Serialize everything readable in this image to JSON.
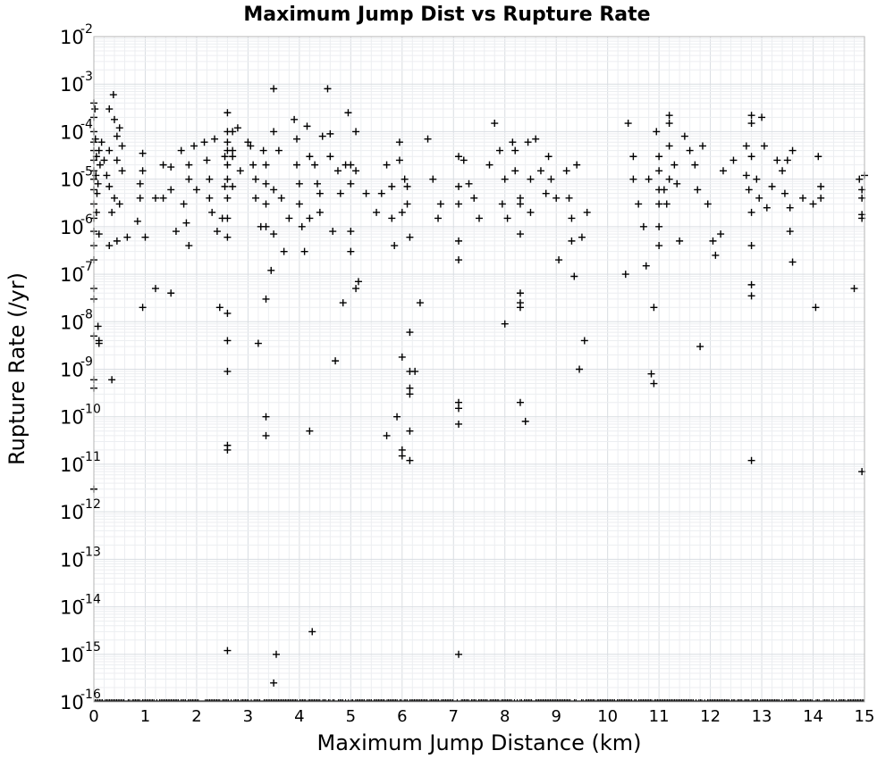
{
  "chart_data": {
    "type": "scatter",
    "title": "Maximum Jump Dist vs Rupture Rate",
    "xlabel": "Maximum Jump Distance (km)",
    "ylabel": "Rupture Rate (/yr)",
    "xlim": [
      0,
      15
    ],
    "ylim": [
      1e-16,
      0.01
    ],
    "y_scale": "log",
    "x_ticks": [
      "0",
      "1",
      "2",
      "3",
      "4",
      "5",
      "6",
      "7",
      "8",
      "9",
      "10",
      "11",
      "12",
      "13",
      "14",
      "15"
    ],
    "y_ticks": [
      {
        "base": "10",
        "exp": "-2"
      },
      {
        "base": "10",
        "exp": "-3"
      },
      {
        "base": "10",
        "exp": "-4"
      },
      {
        "base": "10",
        "exp": "-5"
      },
      {
        "base": "10",
        "exp": "-6"
      },
      {
        "base": "10",
        "exp": "-7"
      },
      {
        "base": "10",
        "exp": "-8"
      },
      {
        "base": "10",
        "exp": "-9"
      },
      {
        "base": "10",
        "exp": "-10"
      },
      {
        "base": "10",
        "exp": "-11"
      },
      {
        "base": "10",
        "exp": "-12"
      },
      {
        "base": "10",
        "exp": "-13"
      },
      {
        "base": "10",
        "exp": "-14"
      },
      {
        "base": "10",
        "exp": "-15"
      },
      {
        "base": "10",
        "exp": "-16"
      }
    ],
    "grid": true,
    "marker": "plus",
    "marker_color": "#000000",
    "points": [
      [
        0.0,
        0.0004
      ],
      [
        0.0,
        0.0002
      ],
      [
        0.0,
        0.0001
      ],
      [
        0.0,
        6e-05
      ],
      [
        0.0,
        4e-05
      ],
      [
        0.0,
        2.5e-05
      ],
      [
        0.0,
        1.5e-05
      ],
      [
        0.0,
        1e-05
      ],
      [
        0.0,
        6e-06
      ],
      [
        0.0,
        3e-06
      ],
      [
        0.0,
        1.5e-06
      ],
      [
        0.0,
        8e-07
      ],
      [
        0.0,
        4e-07
      ],
      [
        0.0,
        2e-07
      ],
      [
        0.0,
        5e-08
      ],
      [
        0.0,
        3e-08
      ],
      [
        0.0,
        5e-09
      ],
      [
        0.0,
        6e-10
      ],
      [
        0.0,
        4e-10
      ],
      [
        0.0,
        3e-12
      ],
      [
        0.02,
        0.0003
      ],
      [
        0.03,
        7e-05
      ],
      [
        0.05,
        3e-05
      ],
      [
        0.04,
        1.2e-05
      ],
      [
        0.06,
        5e-06
      ],
      [
        0.05,
        2e-06
      ],
      [
        0.08,
        8e-06
      ],
      [
        0.1,
        4e-05
      ],
      [
        0.12,
        2e-05
      ],
      [
        0.1,
        7e-07
      ],
      [
        0.1,
        4e-09
      ],
      [
        0.1,
        3.5e-09
      ],
      [
        0.08,
        8e-09
      ],
      [
        0.15,
        6e-05
      ],
      [
        0.2,
        2.5e-05
      ],
      [
        0.25,
        1.2e-05
      ],
      [
        0.3,
        0.0003
      ],
      [
        0.3,
        4e-05
      ],
      [
        0.3,
        7e-06
      ],
      [
        0.35,
        2e-06
      ],
      [
        0.3,
        4e-07
      ],
      [
        0.35,
        6e-10
      ],
      [
        0.38,
        0.0006
      ],
      [
        0.4,
        0.00018
      ],
      [
        0.45,
        8e-05
      ],
      [
        0.45,
        2.5e-05
      ],
      [
        0.4,
        4e-06
      ],
      [
        0.45,
        5e-07
      ],
      [
        0.5,
        0.00012
      ],
      [
        0.55,
        5e-05
      ],
      [
        0.55,
        1.5e-05
      ],
      [
        0.5,
        3e-06
      ],
      [
        0.65,
        6e-07
      ],
      [
        0.85,
        1.3e-06
      ],
      [
        0.9,
        8e-06
      ],
      [
        0.9,
        4e-06
      ],
      [
        0.95,
        3.5e-05
      ],
      [
        0.95,
        1.5e-05
      ],
      [
        0.95,
        2e-08
      ],
      [
        1.0,
        6e-07
      ],
      [
        1.2,
        4e-06
      ],
      [
        1.2,
        5e-08
      ],
      [
        1.35,
        2e-05
      ],
      [
        1.35,
        4e-06
      ],
      [
        1.5,
        1.8e-05
      ],
      [
        1.5,
        6e-06
      ],
      [
        1.5,
        4e-08
      ],
      [
        1.6,
        8e-07
      ],
      [
        1.7,
        4e-05
      ],
      [
        1.75,
        3e-06
      ],
      [
        1.8,
        1.2e-06
      ],
      [
        1.85,
        2e-05
      ],
      [
        1.85,
        1e-05
      ],
      [
        1.85,
        4e-07
      ],
      [
        1.95,
        5e-05
      ],
      [
        2.0,
        6e-06
      ],
      [
        2.15,
        6e-05
      ],
      [
        2.2,
        2.5e-05
      ],
      [
        2.25,
        1e-05
      ],
      [
        2.25,
        4e-06
      ],
      [
        2.3,
        2e-06
      ],
      [
        2.35,
        7e-05
      ],
      [
        2.4,
        8e-07
      ],
      [
        2.45,
        2e-08
      ],
      [
        2.5,
        1.5e-06
      ],
      [
        2.55,
        3e-05
      ],
      [
        2.55,
        7e-06
      ],
      [
        2.6,
        0.00025
      ],
      [
        2.6,
        0.0001
      ],
      [
        2.6,
        6e-05
      ],
      [
        2.6,
        4e-05
      ],
      [
        2.6,
        2e-05
      ],
      [
        2.6,
        1e-05
      ],
      [
        2.6,
        4e-06
      ],
      [
        2.6,
        1.5e-06
      ],
      [
        2.6,
        6e-07
      ],
      [
        2.6,
        1.5e-08
      ],
      [
        2.6,
        4e-09
      ],
      [
        2.6,
        9e-10
      ],
      [
        2.6,
        2.5e-11
      ],
      [
        2.6,
        2e-11
      ],
      [
        2.6,
        1.2e-15
      ],
      [
        2.7,
        0.0001
      ],
      [
        2.7,
        4e-05
      ],
      [
        2.7,
        3e-05
      ],
      [
        2.7,
        7e-06
      ],
      [
        2.8,
        0.00012
      ],
      [
        2.85,
        1.5e-05
      ],
      [
        3.0,
        6e-05
      ],
      [
        3.05,
        5e-05
      ],
      [
        3.1,
        2e-05
      ],
      [
        3.15,
        1e-05
      ],
      [
        3.15,
        4e-06
      ],
      [
        3.2,
        3.5e-09
      ],
      [
        3.25,
        1e-06
      ],
      [
        3.3,
        4e-05
      ],
      [
        3.35,
        2e-05
      ],
      [
        3.35,
        8e-06
      ],
      [
        3.35,
        3e-06
      ],
      [
        3.35,
        1e-06
      ],
      [
        3.35,
        3e-08
      ],
      [
        3.35,
        1e-10
      ],
      [
        3.35,
        4e-11
      ],
      [
        3.45,
        1.2e-07
      ],
      [
        3.5,
        0.0008
      ],
      [
        3.5,
        0.0001
      ],
      [
        3.5,
        6e-06
      ],
      [
        3.5,
        7e-07
      ],
      [
        3.5,
        2.5e-16
      ],
      [
        3.55,
        1e-15
      ],
      [
        3.6,
        4e-05
      ],
      [
        3.65,
        4e-06
      ],
      [
        3.7,
        3e-07
      ],
      [
        3.8,
        1.5e-06
      ],
      [
        3.9,
        0.00018
      ],
      [
        3.95,
        7e-05
      ],
      [
        3.95,
        2e-05
      ],
      [
        4.0,
        8e-06
      ],
      [
        4.0,
        3e-06
      ],
      [
        4.05,
        1e-06
      ],
      [
        4.1,
        3e-07
      ],
      [
        4.15,
        0.00013
      ],
      [
        4.2,
        3e-05
      ],
      [
        4.2,
        1.5e-06
      ],
      [
        4.2,
        5e-11
      ],
      [
        4.25,
        3e-15
      ],
      [
        4.3,
        2e-05
      ],
      [
        4.35,
        8e-06
      ],
      [
        4.4,
        5e-06
      ],
      [
        4.4,
        2e-06
      ],
      [
        4.45,
        8e-05
      ],
      [
        4.55,
        0.0008
      ],
      [
        4.6,
        9e-05
      ],
      [
        4.6,
        3e-05
      ],
      [
        4.65,
        8e-07
      ],
      [
        4.7,
        1.5e-09
      ],
      [
        4.75,
        1.5e-05
      ],
      [
        4.8,
        5e-06
      ],
      [
        4.85,
        2.5e-08
      ],
      [
        4.9,
        2e-05
      ],
      [
        4.95,
        0.00025
      ],
      [
        5.0,
        2e-05
      ],
      [
        5.0,
        8e-06
      ],
      [
        5.0,
        8e-07
      ],
      [
        5.0,
        3e-07
      ],
      [
        5.1,
        0.0001
      ],
      [
        5.1,
        1.5e-05
      ],
      [
        5.1,
        5e-08
      ],
      [
        5.15,
        7e-08
      ],
      [
        5.3,
        5e-06
      ],
      [
        5.5,
        2e-06
      ],
      [
        5.6,
        5e-06
      ],
      [
        5.7,
        2e-05
      ],
      [
        5.7,
        4e-11
      ],
      [
        5.8,
        7e-06
      ],
      [
        5.8,
        1.5e-06
      ],
      [
        5.85,
        4e-07
      ],
      [
        5.9,
        1e-10
      ],
      [
        5.95,
        6e-05
      ],
      [
        5.95,
        2.5e-05
      ],
      [
        6.0,
        2e-06
      ],
      [
        6.0,
        1.8e-09
      ],
      [
        6.0,
        2e-11
      ],
      [
        6.0,
        1.5e-11
      ],
      [
        6.05,
        1e-05
      ],
      [
        6.1,
        7e-06
      ],
      [
        6.1,
        3e-06
      ],
      [
        6.15,
        6e-07
      ],
      [
        6.15,
        6e-09
      ],
      [
        6.15,
        9e-10
      ],
      [
        6.15,
        4e-10
      ],
      [
        6.15,
        3e-10
      ],
      [
        6.15,
        5e-11
      ],
      [
        6.15,
        1.2e-11
      ],
      [
        6.25,
        9e-10
      ],
      [
        6.35,
        2.5e-08
      ],
      [
        6.5,
        7e-05
      ],
      [
        6.6,
        1e-05
      ],
      [
        6.7,
        1.5e-06
      ],
      [
        6.75,
        3e-06
      ],
      [
        7.1,
        3e-05
      ],
      [
        7.1,
        7e-06
      ],
      [
        7.1,
        3e-06
      ],
      [
        7.1,
        5e-07
      ],
      [
        7.1,
        2e-07
      ],
      [
        7.1,
        2e-10
      ],
      [
        7.1,
        1.5e-10
      ],
      [
        7.1,
        7e-11
      ],
      [
        7.1,
        1e-15
      ],
      [
        7.2,
        2.5e-05
      ],
      [
        7.3,
        8e-06
      ],
      [
        7.4,
        4e-06
      ],
      [
        7.5,
        1.5e-06
      ],
      [
        7.7,
        2e-05
      ],
      [
        7.8,
        0.00015
      ],
      [
        7.9,
        4e-05
      ],
      [
        7.95,
        3e-06
      ],
      [
        8.0,
        1e-05
      ],
      [
        8.0,
        9e-09
      ],
      [
        8.05,
        1.5e-06
      ],
      [
        8.15,
        6e-05
      ],
      [
        8.2,
        4e-05
      ],
      [
        8.2,
        1.5e-05
      ],
      [
        8.3,
        4e-06
      ],
      [
        8.3,
        3e-06
      ],
      [
        8.3,
        7e-07
      ],
      [
        8.3,
        4e-08
      ],
      [
        8.3,
        2.5e-08
      ],
      [
        8.3,
        2e-08
      ],
      [
        8.3,
        2e-10
      ],
      [
        8.4,
        8e-11
      ],
      [
        8.45,
        6e-05
      ],
      [
        8.5,
        1e-05
      ],
      [
        8.5,
        2e-06
      ],
      [
        8.6,
        7e-05
      ],
      [
        8.7,
        1.5e-05
      ],
      [
        8.8,
        5e-06
      ],
      [
        8.85,
        3e-05
      ],
      [
        8.9,
        1e-05
      ],
      [
        9.0,
        4e-06
      ],
      [
        9.05,
        2e-07
      ],
      [
        9.2,
        1.5e-05
      ],
      [
        9.25,
        4e-06
      ],
      [
        9.3,
        1.5e-06
      ],
      [
        9.3,
        5e-07
      ],
      [
        9.35,
        9e-08
      ],
      [
        9.4,
        2e-05
      ],
      [
        9.45,
        1e-09
      ],
      [
        9.5,
        6e-07
      ],
      [
        9.55,
        4e-09
      ],
      [
        9.6,
        2e-06
      ],
      [
        10.35,
        1e-07
      ],
      [
        10.4,
        0.00015
      ],
      [
        10.5,
        3e-05
      ],
      [
        10.5,
        1e-05
      ],
      [
        10.6,
        3e-06
      ],
      [
        10.7,
        1e-06
      ],
      [
        10.75,
        1.5e-07
      ],
      [
        10.8,
        1e-05
      ],
      [
        10.85,
        8e-10
      ],
      [
        10.9,
        2e-08
      ],
      [
        10.9,
        5e-10
      ],
      [
        10.95,
        0.0001
      ],
      [
        11.0,
        3e-05
      ],
      [
        11.0,
        1.5e-05
      ],
      [
        11.0,
        6e-06
      ],
      [
        11.0,
        3e-06
      ],
      [
        11.0,
        1e-06
      ],
      [
        11.0,
        4e-07
      ],
      [
        11.1,
        6e-06
      ],
      [
        11.15,
        3e-06
      ],
      [
        11.2,
        0.00022
      ],
      [
        11.2,
        0.00015
      ],
      [
        11.2,
        5e-05
      ],
      [
        11.2,
        1e-05
      ],
      [
        11.3,
        2e-05
      ],
      [
        11.35,
        8e-06
      ],
      [
        11.4,
        5e-07
      ],
      [
        11.5,
        8e-05
      ],
      [
        11.6,
        4e-05
      ],
      [
        11.7,
        2e-05
      ],
      [
        11.75,
        6e-06
      ],
      [
        11.8,
        3e-09
      ],
      [
        11.85,
        5e-05
      ],
      [
        11.95,
        3e-06
      ],
      [
        12.05,
        5e-07
      ],
      [
        12.1,
        2.5e-07
      ],
      [
        12.2,
        7e-07
      ],
      [
        12.25,
        1.5e-05
      ],
      [
        12.45,
        2.5e-05
      ],
      [
        12.7,
        5e-05
      ],
      [
        12.7,
        1.2e-05
      ],
      [
        12.75,
        6e-06
      ],
      [
        12.8,
        0.00022
      ],
      [
        12.8,
        0.00015
      ],
      [
        12.8,
        3e-05
      ],
      [
        12.8,
        2e-06
      ],
      [
        12.8,
        4e-07
      ],
      [
        12.8,
        6e-08
      ],
      [
        12.8,
        3.5e-08
      ],
      [
        12.8,
        1.2e-11
      ],
      [
        12.9,
        1e-05
      ],
      [
        12.95,
        4e-06
      ],
      [
        13.0,
        0.0002
      ],
      [
        13.05,
        5e-05
      ],
      [
        13.1,
        2.5e-06
      ],
      [
        13.2,
        7e-06
      ],
      [
        13.3,
        2.5e-05
      ],
      [
        13.4,
        1.5e-05
      ],
      [
        13.45,
        5e-06
      ],
      [
        13.5,
        2.5e-05
      ],
      [
        13.55,
        2.5e-06
      ],
      [
        13.55,
        8e-07
      ],
      [
        13.6,
        1.8e-07
      ],
      [
        13.6,
        4e-05
      ],
      [
        13.8,
        4e-06
      ],
      [
        14.0,
        3e-06
      ],
      [
        14.05,
        2e-08
      ],
      [
        14.1,
        3e-05
      ],
      [
        14.15,
        7e-06
      ],
      [
        14.15,
        4e-06
      ],
      [
        14.8,
        5e-08
      ],
      [
        14.9,
        1e-05
      ],
      [
        14.95,
        6e-06
      ],
      [
        14.95,
        4e-06
      ],
      [
        14.95,
        1.8e-06
      ],
      [
        14.95,
        1.5e-06
      ],
      [
        14.95,
        7e-12
      ],
      [
        15.0,
        1.2e-05
      ]
    ]
  }
}
